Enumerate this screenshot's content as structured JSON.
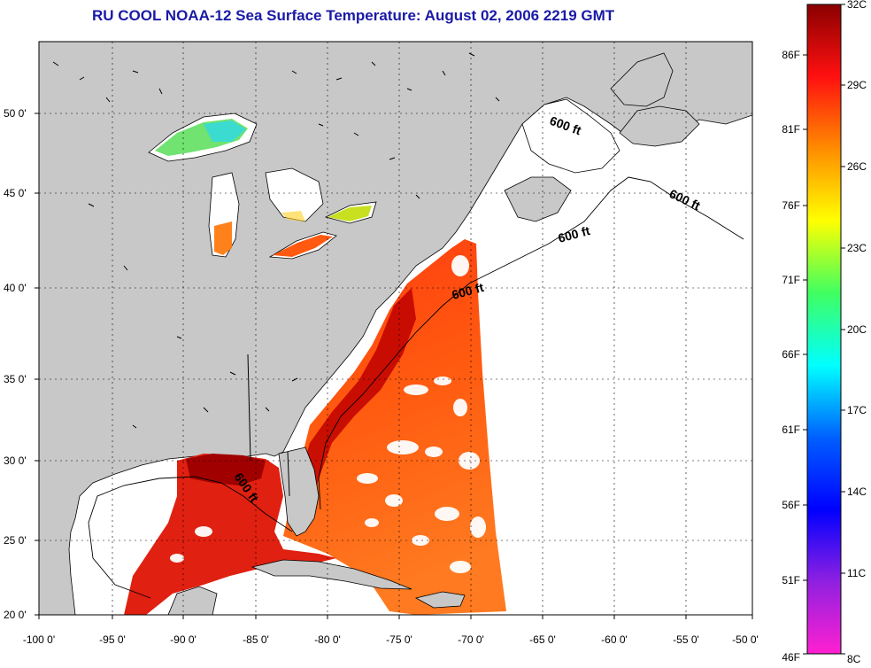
{
  "title": "RU COOL  NOAA-12  Sea Surface Temperature:  August 02, 2006 2219 GMT",
  "map": {
    "lon_labels": [
      "-100 0'",
      "-95 0'",
      "-90 0'",
      "-85 0'",
      "-80 0'",
      "-75 0'",
      "-70 0'",
      "-65 0'",
      "-60 0'",
      "-55 0'",
      "-50 0'"
    ],
    "lat_labels": [
      "50 0'",
      "45 0'",
      "40 0'",
      "35 0'",
      "30 0'",
      "25 0'",
      "20 0'"
    ],
    "depth_contour_label": "600 ft",
    "colors": {
      "land": "#c8c8c8",
      "ocean_no_data": "#ffffff",
      "gridline": "#000000"
    }
  },
  "colorbar": {
    "celsius_labels": [
      "32C",
      "29C",
      "26C",
      "23C",
      "20C",
      "17C",
      "14C",
      "11C",
      "8C"
    ],
    "fahrenheit_labels": [
      "86F",
      "81F",
      "76F",
      "71F",
      "66F",
      "61F",
      "56F",
      "51F",
      "46F"
    ],
    "stops": [
      "#8b0000",
      "#ff1010",
      "#ff8c00",
      "#ffff00",
      "#40ff60",
      "#00ffff",
      "#0060ff",
      "#0000ff",
      "#9020e0",
      "#ff20d0"
    ]
  }
}
